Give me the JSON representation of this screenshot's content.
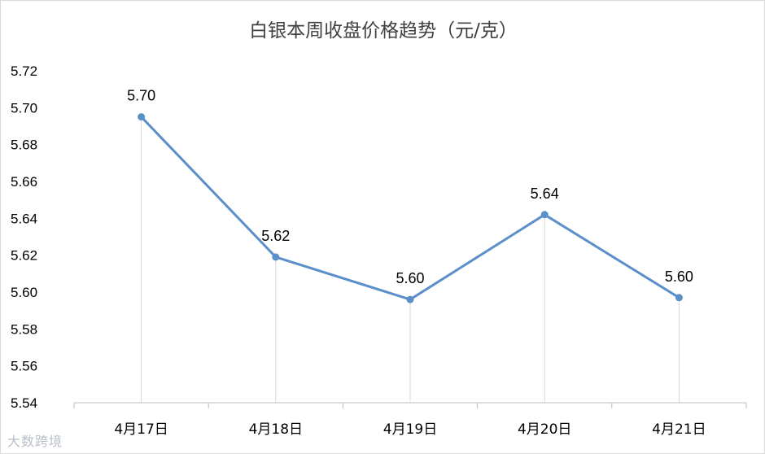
{
  "chart_data": {
    "type": "line",
    "title": "白银本周收盘价格趋势（元/克）",
    "categories": [
      "4月17日",
      "4月18日",
      "4月19日",
      "4月20日",
      "4月21日"
    ],
    "series": [
      {
        "values": [
          5.695,
          5.619,
          5.596,
          5.642,
          5.597
        ],
        "labels": [
          "5.70",
          "5.62",
          "5.60",
          "5.64",
          "5.60"
        ]
      }
    ],
    "ylim": [
      5.54,
      5.72
    ],
    "yticks": [
      "5.54",
      "5.56",
      "5.58",
      "5.60",
      "5.62",
      "5.64",
      "5.66",
      "5.68",
      "5.70",
      "5.72"
    ],
    "xlabel": "",
    "ylabel": "",
    "grid": false,
    "drop_lines": true,
    "colors": {
      "line": "#5b8fc9",
      "drop": "#d9d9d9",
      "axis": "#bfbfbf"
    }
  },
  "watermark": "大数跨境"
}
